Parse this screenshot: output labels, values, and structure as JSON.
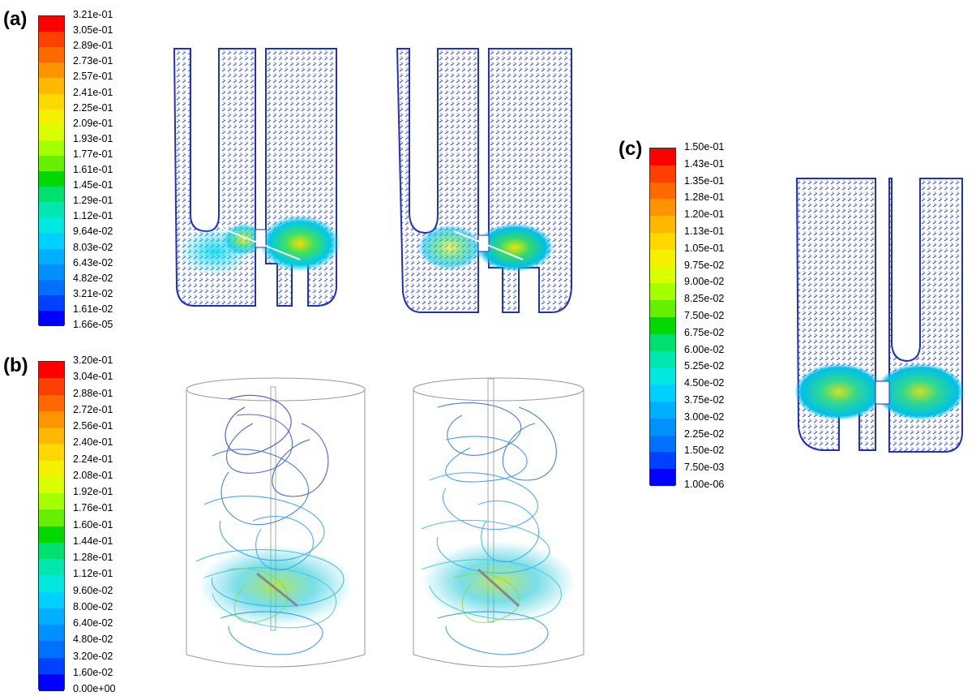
{
  "panels": {
    "a": {
      "label": "(a)"
    },
    "b": {
      "label": "(b)"
    },
    "c": {
      "label": "(c)"
    }
  },
  "legend_colors": [
    "#ff0000",
    "#ff4000",
    "#ff6a00",
    "#ff9400",
    "#ffb800",
    "#ffd800",
    "#f4f000",
    "#d9ff00",
    "#a6ff00",
    "#66f000",
    "#00d800",
    "#00e070",
    "#00e8b0",
    "#00e8e0",
    "#00d0ff",
    "#00b0ff",
    "#0090ff",
    "#0070ff",
    "#0040ff",
    "#0000ff"
  ],
  "legends": {
    "a": [
      "3.21e-01",
      "3.05e-01",
      "2.89e-01",
      "2.73e-01",
      "2.57e-01",
      "2.41e-01",
      "2.25e-01",
      "2.09e-01",
      "1.93e-01",
      "1.77e-01",
      "1.61e-01",
      "1.45e-01",
      "1.29e-01",
      "1.12e-01",
      "9.64e-02",
      "8.03e-02",
      "6.43e-02",
      "4.82e-02",
      "3.21e-02",
      "1.61e-02",
      "1.66e-05"
    ],
    "b": [
      "3.20e-01",
      "3.04e-01",
      "2.88e-01",
      "2.72e-01",
      "2.56e-01",
      "2.40e-01",
      "2.24e-01",
      "2.08e-01",
      "1.92e-01",
      "1.76e-01",
      "1.60e-01",
      "1.44e-01",
      "1.28e-01",
      "1.12e-01",
      "9.60e-02",
      "8.00e-02",
      "6.40e-02",
      "4.80e-02",
      "3.20e-02",
      "1.60e-02",
      "0.00e+00"
    ],
    "c": [
      "1.50e-01",
      "1.43e-01",
      "1.35e-01",
      "1.28e-01",
      "1.20e-01",
      "1.13e-01",
      "1.05e-01",
      "9.75e-02",
      "9.00e-02",
      "8.25e-02",
      "7.50e-02",
      "6.75e-02",
      "6.00e-02",
      "5.25e-02",
      "4.50e-02",
      "3.75e-02",
      "3.00e-02",
      "2.25e-02",
      "1.50e-02",
      "7.50e-03",
      "1.00e-06"
    ]
  }
}
